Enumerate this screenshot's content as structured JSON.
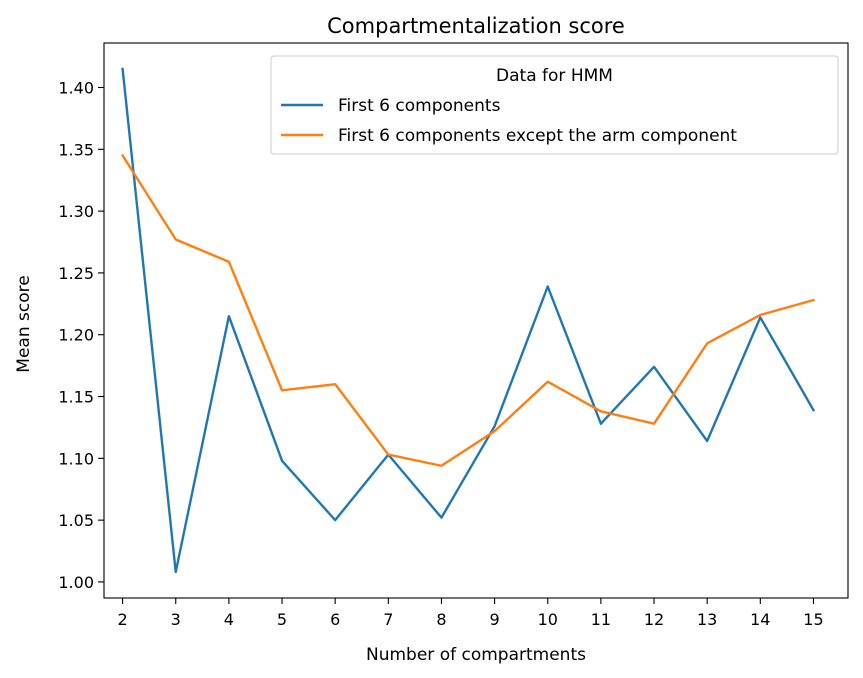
{
  "chart_data": {
    "type": "line",
    "title": "Compartmentalization score",
    "xlabel": "Number of compartments",
    "ylabel": "Mean score",
    "x": [
      2,
      3,
      4,
      5,
      6,
      7,
      8,
      9,
      10,
      11,
      12,
      13,
      14,
      15
    ],
    "xlim": [
      1.65,
      15.65
    ],
    "ylim": [
      0.987,
      1.436
    ],
    "yticks": [
      1.0,
      1.05,
      1.1,
      1.15,
      1.2,
      1.25,
      1.3,
      1.35,
      1.4
    ],
    "ytick_labels": [
      "1.00",
      "1.05",
      "1.10",
      "1.15",
      "1.20",
      "1.25",
      "1.30",
      "1.35",
      "1.40"
    ],
    "xtick_labels": [
      "2",
      "3",
      "4",
      "5",
      "6",
      "7",
      "8",
      "9",
      "10",
      "11",
      "12",
      "13",
      "14",
      "15"
    ],
    "grid": false,
    "legend": {
      "title": "Data for HMM",
      "placement": "upper-right"
    },
    "series": [
      {
        "name": "First 6 components",
        "color": "#1f77b4",
        "values": [
          1.415,
          1.008,
          1.215,
          1.098,
          1.05,
          1.103,
          1.052,
          1.126,
          1.239,
          1.128,
          1.174,
          1.114,
          1.214,
          1.139
        ]
      },
      {
        "name": "First 6 components except the arm component",
        "color": "#ff7f0e",
        "values": [
          1.345,
          1.277,
          1.259,
          1.155,
          1.16,
          1.103,
          1.094,
          1.122,
          1.162,
          1.138,
          1.128,
          1.193,
          1.216,
          1.228
        ]
      }
    ]
  }
}
